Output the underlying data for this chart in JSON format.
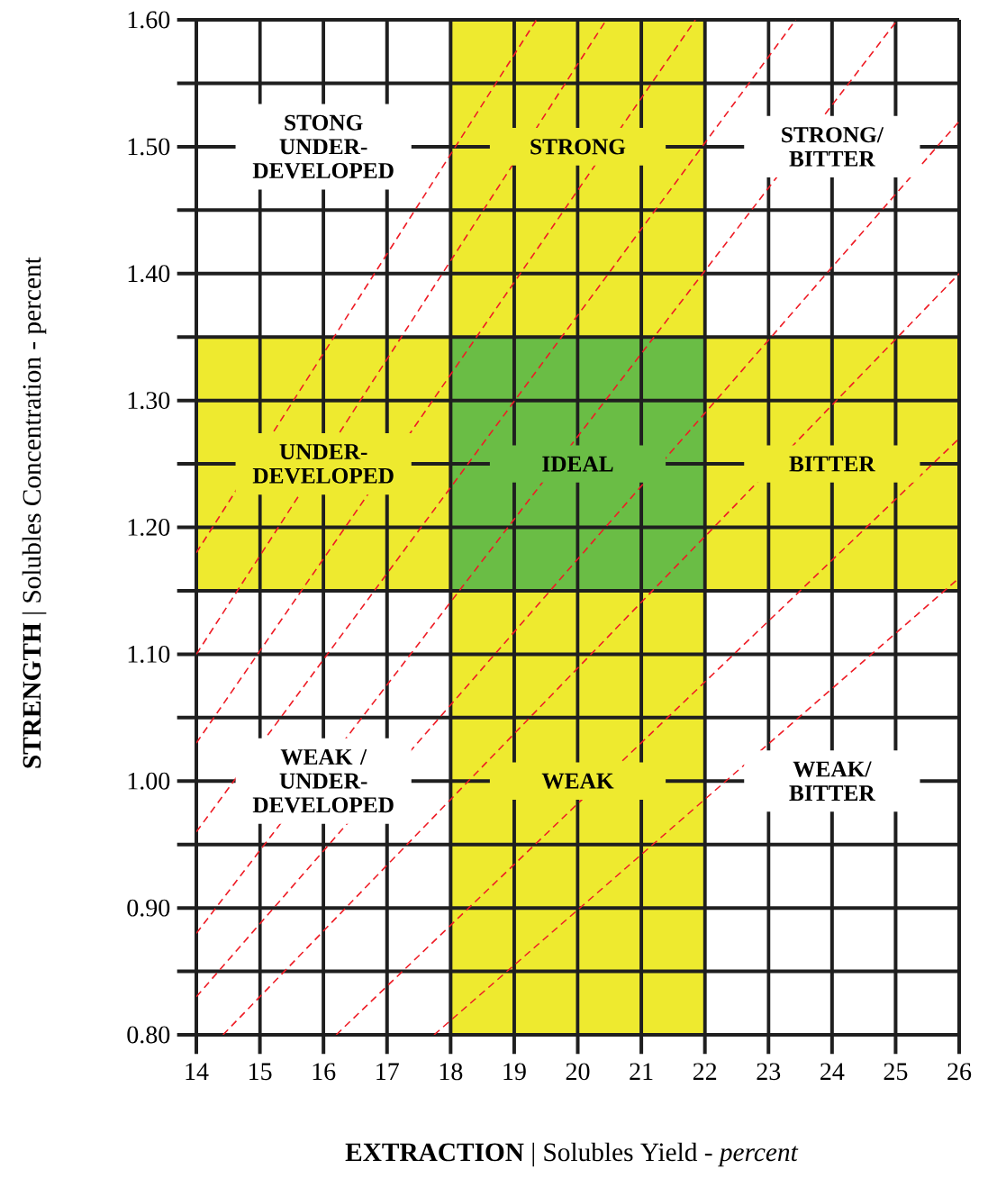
{
  "chart_data": {
    "type": "line",
    "xlabel": "**EXTRACTION**  |  Solubles Yield - *percent*",
    "ylabel": "**STRENGTH**  |  Solubles Concentration - percent",
    "xlim": [
      14,
      26
    ],
    "ylim": [
      0.8,
      1.6
    ],
    "xticks": [
      14,
      15,
      16,
      17,
      18,
      19,
      20,
      21,
      22,
      23,
      24,
      25,
      26
    ],
    "yticks": [
      {
        "value": 0.8,
        "label": "0.80"
      },
      {
        "value": 0.85,
        "label": null
      },
      {
        "value": 0.9,
        "label": "0.90"
      },
      {
        "value": 0.95,
        "label": null
      },
      {
        "value": 1.0,
        "label": "1.00"
      },
      {
        "value": 1.05,
        "label": null
      },
      {
        "value": 1.1,
        "label": "1.10"
      },
      {
        "value": 1.15,
        "label": null
      },
      {
        "value": 1.2,
        "label": "1.20"
      },
      {
        "value": 1.25,
        "label": null
      },
      {
        "value": 1.3,
        "label": "1.30"
      },
      {
        "value": 1.35,
        "label": null
      },
      {
        "value": 1.4,
        "label": "1.40"
      },
      {
        "value": 1.45,
        "label": null
      },
      {
        "value": 1.5,
        "label": "1.50"
      },
      {
        "value": 1.55,
        "label": null
      },
      {
        "value": 1.6,
        "label": "1.60"
      }
    ],
    "grid": true,
    "line_style": "dashed",
    "bands": [
      {
        "axis": "x",
        "from": 18,
        "to": 22,
        "color": "#eeea2f"
      },
      {
        "axis": "y",
        "from": 1.15,
        "to": 1.35,
        "color": "#eeea2f"
      }
    ],
    "series": [
      {
        "type": "bar",
        "color": "#6abd45",
        "x": [
          20
        ],
        "base": [
          1.15
        ],
        "values": [
          0.2
        ]
      },
      {
        "color": "#ee1c25",
        "x": [
          14,
          19.35
        ],
        "values": [
          1.18,
          1.6
        ]
      },
      {
        "color": "#ee1c25",
        "x": [
          14,
          20.45
        ],
        "values": [
          1.1,
          1.6
        ]
      },
      {
        "color": "#ee1c25",
        "x": [
          14,
          21.85
        ],
        "values": [
          1.03,
          1.6
        ]
      },
      {
        "color": "#ee1c25",
        "x": [
          14,
          23.43
        ],
        "values": [
          0.96,
          1.6
        ]
      },
      {
        "color": "#ee1c25",
        "x": [
          14,
          25.03
        ],
        "values": [
          0.88,
          1.6
        ]
      },
      {
        "color": "#ee1c25",
        "x": [
          14,
          26
        ],
        "values": [
          0.83,
          1.52
        ]
      },
      {
        "color": "#ee1c25",
        "x": [
          14.42,
          26
        ],
        "values": [
          0.8,
          1.4
        ]
      },
      {
        "color": "#ee1c25",
        "x": [
          16.2,
          26
        ],
        "values": [
          0.8,
          1.27
        ]
      },
      {
        "color": "#ee1c25",
        "x": [
          17.74,
          26
        ],
        "values": [
          0.8,
          1.16
        ]
      }
    ],
    "annotations": [
      "STONG UNDER-DEVELOPED",
      "STRONG",
      "STRONG/ BITTER",
      "UNDER-DEVELOPED",
      "IDEAL",
      "BITTER",
      "WEAK / UNDER-DEVELOPED",
      "WEAK",
      "WEAK/ BITTER"
    ]
  }
}
